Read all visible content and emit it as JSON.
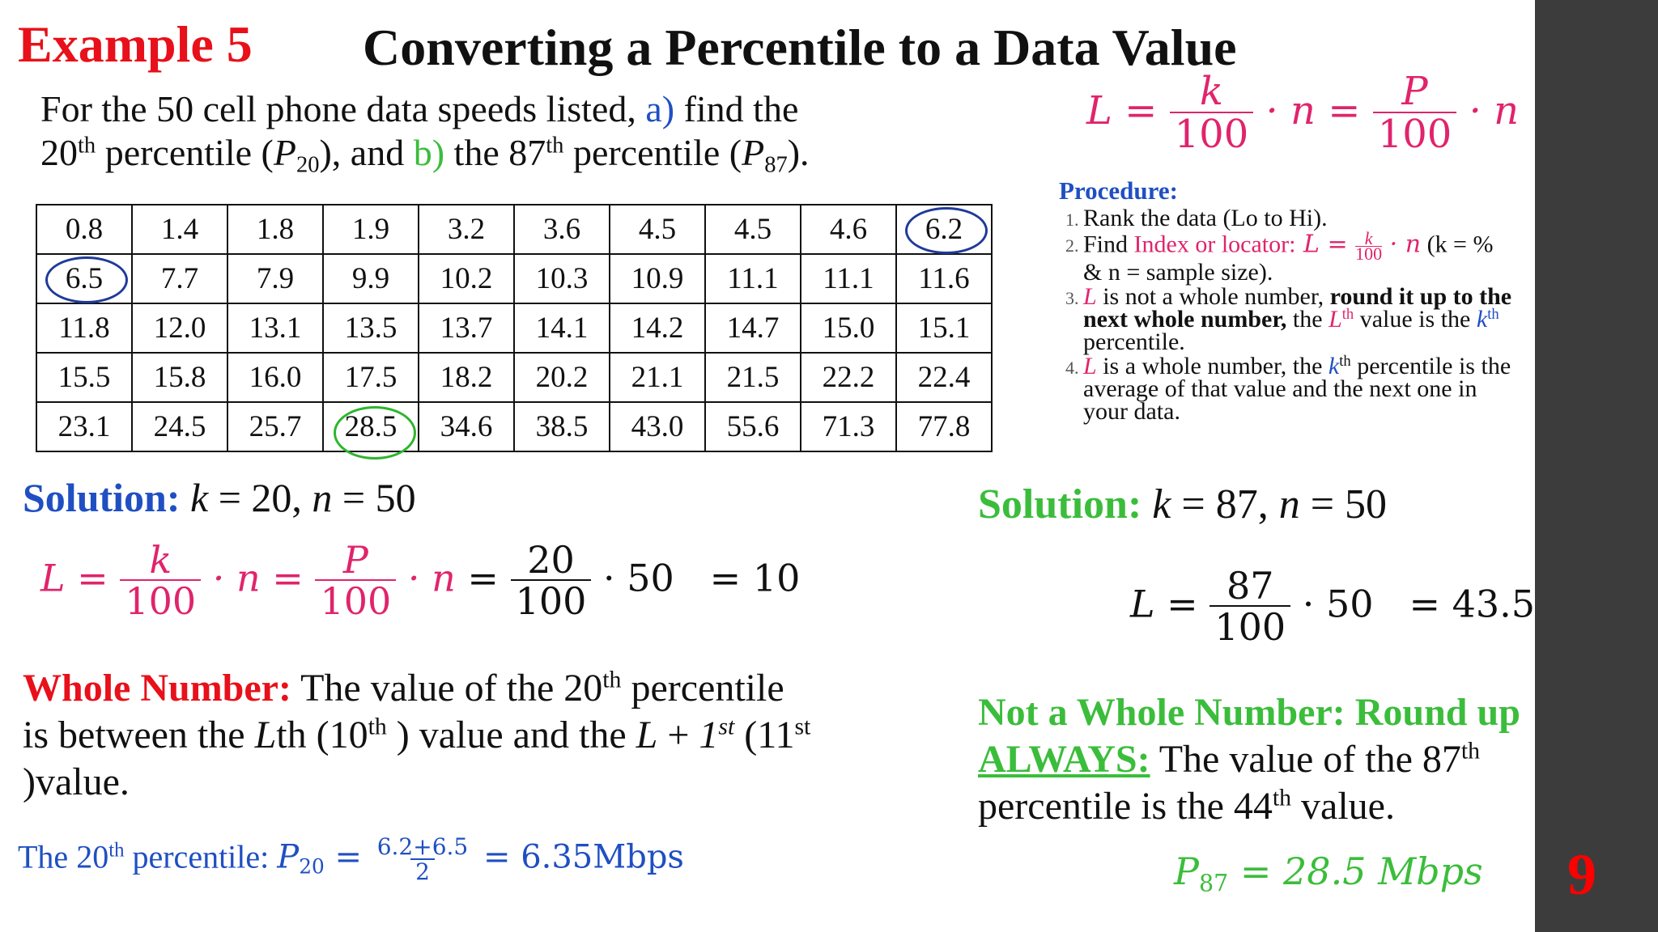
{
  "header": {
    "example_label": "Example 5",
    "title": "Converting a Percentile to a Data Value"
  },
  "intro": {
    "line1_a": "For the 50 cell phone data speeds listed, ",
    "line1_part_a": "a)",
    "line1_b": " find the",
    "line2_a": "20",
    "line2_sup": "th",
    "line2_b": " percentile (",
    "line2_P": "P",
    "line2_sub20": "20",
    "line2_c": "), and ",
    "line2_part_b": "b)",
    "line2_d": " the 87",
    "line2_sup2": "th",
    "line2_e": " percentile (",
    "line2_P2": "P",
    "line2_sub87": "87",
    "line2_f": ")."
  },
  "formula": {
    "L": "L",
    "eq": "=",
    "k": "k",
    "hundred": "100",
    "dot_n": "· n",
    "P": "P"
  },
  "procedure": {
    "heading": "Procedure:",
    "step1": "Rank the data (Lo to Hi).",
    "step2_a": "Find ",
    "step2_highlight": "Index or locator:",
    "step2_L": " L = ",
    "step2_k": "k",
    "step2_100": "100",
    "step2_n": " · n",
    "step2_b": " (k = % & n = sample size).",
    "step3_L": "L",
    "step3_a": " is not a whole number, ",
    "step3_bold": "round it up to the next whole number,",
    "step3_b": " the ",
    "step3_L2": "L",
    "step3_th": "th",
    "step3_c": " value is the ",
    "step3_k": "k",
    "step3_th2": "th",
    "step3_d": " percentile.",
    "step4_L": "L",
    "step4_a": " is a whole number, the ",
    "step4_k": "k",
    "step4_th": "th",
    "step4_b": " percentile is the average of that value and the next one in your data."
  },
  "table": {
    "rows": [
      [
        "0.8",
        "1.4",
        "1.8",
        "1.9",
        "3.2",
        "3.6",
        "4.5",
        "4.5",
        "4.6",
        "6.2"
      ],
      [
        "6.5",
        "7.7",
        "7.9",
        "9.9",
        "10.2",
        "10.3",
        "10.9",
        "11.1",
        "11.1",
        "11.6"
      ],
      [
        "11.8",
        "12.0",
        "13.1",
        "13.5",
        "13.7",
        "14.1",
        "14.2",
        "14.7",
        "15.0",
        "15.1"
      ],
      [
        "15.5",
        "15.8",
        "16.0",
        "17.5",
        "18.2",
        "20.2",
        "21.1",
        "21.5",
        "22.2",
        "22.4"
      ],
      [
        "23.1",
        "24.5",
        "25.7",
        "28.5",
        "34.6",
        "38.5",
        "43.0",
        "55.6",
        "71.3",
        "77.8"
      ]
    ],
    "circled_blue": [
      "6.2",
      "6.5"
    ],
    "circled_green": [
      "28.5"
    ]
  },
  "solution_a": {
    "label": "Solution:",
    "text_k": "k",
    "text_a": " = 20, ",
    "text_n": "n",
    "text_b": " = 50",
    "num20": "20",
    "den100": "100",
    "times50": "· 50",
    "result": "= 10",
    "whole_label": "Whole Number:",
    "whole_a": " The value of the 20",
    "whole_sup1": "th",
    "whole_b": " percentile is between the ",
    "whole_L": "L",
    "whole_c": "th (10",
    "whole_sup2": "th",
    "whole_d": " ) value and the ",
    "whole_L2": "L",
    "whole_e": " + ",
    "whole_1": "1",
    "whole_sup3": "st",
    "whole_f": " (11",
    "whole_sup4": "st",
    "whole_g": " )value.",
    "p20_a": "The 20",
    "p20_sup": "th",
    "p20_b": " percentile: ",
    "p20_P": "P",
    "p20_sub": "20",
    "p20_eq": " = ",
    "p20_num": "6.2+6.5",
    "p20_den": "2",
    "p20_result": " = 6.35Mbps"
  },
  "solution_b": {
    "label": "Solution:",
    "text_k": "k",
    "text_a": " = 87, ",
    "text_n": "n",
    "text_b": " = 50",
    "L": "L",
    "eq": " = ",
    "num87": "87",
    "den100": "100",
    "times50": "· 50",
    "result": "= 43.5",
    "not_whole_label": "Not a Whole Number: Round up ",
    "always": "ALWAYS:",
    "text_a2": " The value of the 87",
    "sup1": "th",
    "text_b2": " percentile is the 44",
    "sup2": "th",
    "text_c2": " value.",
    "p87_P": "P",
    "p87_sub": "87",
    "p87_result": " = 28.5 Mbps"
  },
  "page_number": "9"
}
